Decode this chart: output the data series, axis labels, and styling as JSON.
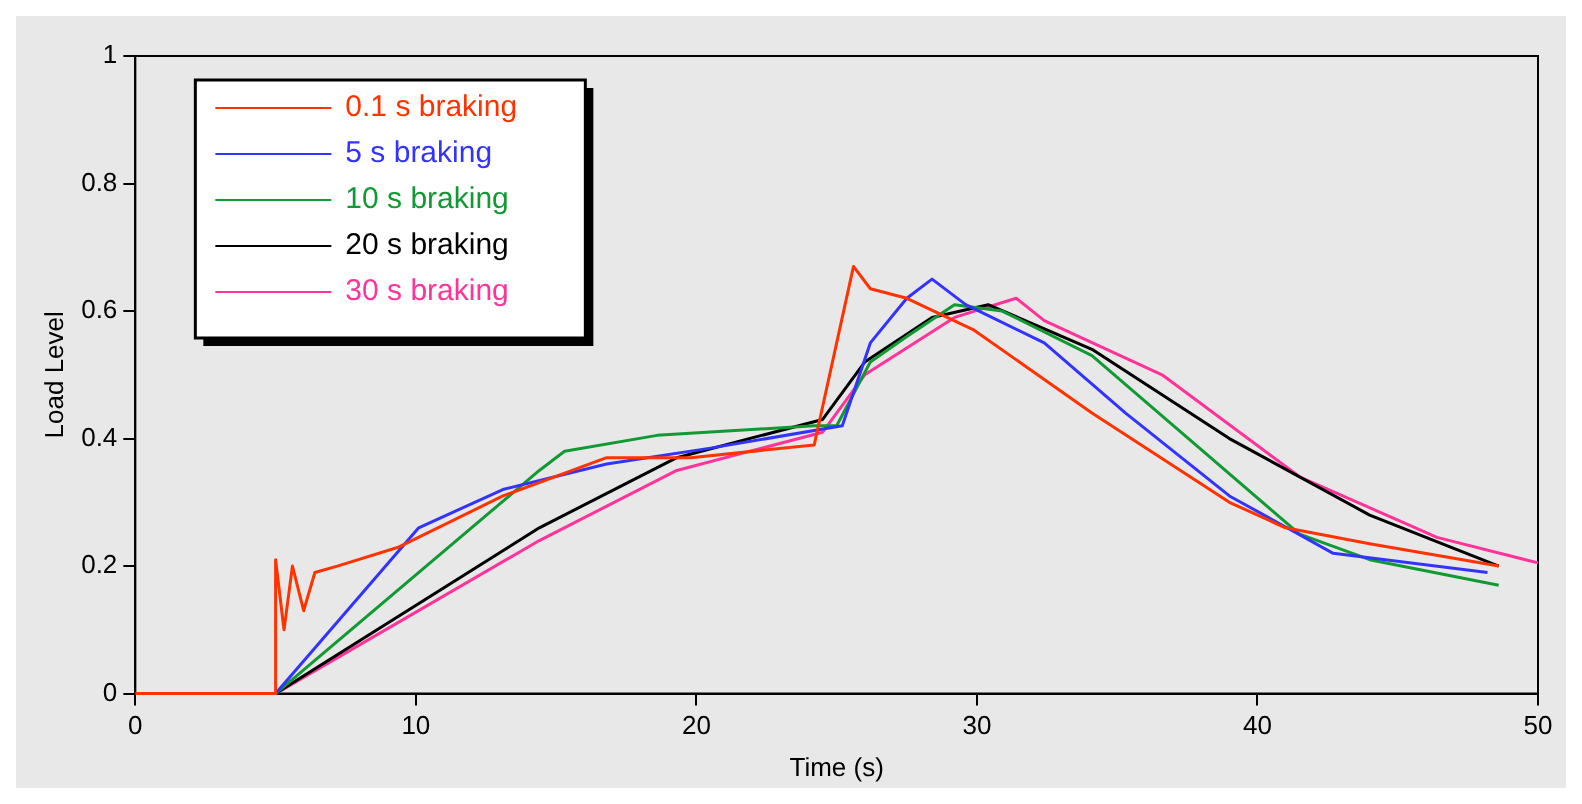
{
  "chart_data": {
    "type": "line",
    "xlabel": "Time (s)",
    "ylabel": "Load Level",
    "xlim": [
      0,
      50
    ],
    "xticks": [
      0,
      10,
      20,
      30,
      40,
      50
    ],
    "ylim": [
      0,
      1
    ],
    "yticks": [
      0,
      0.2,
      0.4,
      0.6,
      0.8,
      1
    ],
    "grid": false,
    "legend": "top left",
    "marker": "none",
    "line_style": "solid",
    "series": [
      {
        "name": "0.1 s braking",
        "color": "#ff3300",
        "x": [
          0,
          4.96,
          5.0,
          5.3,
          5.6,
          6.0,
          6.4,
          7.2,
          9.4,
          13.1,
          16.8,
          19.8,
          24.2,
          25.6,
          26.2,
          27.5,
          29.9,
          34.1,
          39,
          41,
          44,
          48.6
        ],
        "values": [
          0,
          0,
          0.21,
          0.1,
          0.2,
          0.13,
          0.19,
          0.2,
          0.23,
          0.31,
          0.37,
          0.37,
          0.39,
          0.67,
          0.635,
          0.62,
          0.57,
          0.44,
          0.3,
          0.26,
          0.235,
          0.2
        ]
      },
      {
        "name": "5 s braking",
        "color": "#3333ff",
        "x": [
          5,
          10.1,
          13.1,
          16.8,
          20.5,
          25.2,
          26.2,
          27.5,
          28.4,
          29.6,
          32.4,
          35.3,
          39,
          42.7,
          48.2
        ],
        "values": [
          0,
          0.26,
          0.32,
          0.36,
          0.385,
          0.42,
          0.55,
          0.62,
          0.65,
          0.61,
          0.55,
          0.44,
          0.31,
          0.22,
          0.19
        ]
      },
      {
        "name": "10 s braking",
        "color": "#119933",
        "x": [
          5,
          14.4,
          15.3,
          18.6,
          24.2,
          25,
          26.2,
          27.5,
          29.2,
          30.9,
          34.1,
          37.8,
          41.5,
          44,
          48.6
        ],
        "values": [
          0,
          0.35,
          0.38,
          0.405,
          0.42,
          0.42,
          0.52,
          0.56,
          0.61,
          0.6,
          0.53,
          0.39,
          0.25,
          0.21,
          0.17
        ]
      },
      {
        "name": "20 s braking",
        "color": "#000000",
        "x": [
          5,
          14.4,
          19.3,
          24.5,
          26,
          28.4,
          30.4,
          34.1,
          39,
          44,
          48.6
        ],
        "values": [
          0,
          0.26,
          0.37,
          0.43,
          0.52,
          0.59,
          0.61,
          0.54,
          0.4,
          0.28,
          0.2
        ]
      },
      {
        "name": "30 s braking",
        "color": "#ff3399",
        "x": [
          5,
          14.4,
          19.3,
          24.5,
          26,
          29.2,
          31.4,
          32.4,
          36.6,
          41.5,
          46.4,
          50
        ],
        "values": [
          0,
          0.24,
          0.35,
          0.41,
          0.5,
          0.59,
          0.62,
          0.585,
          0.5,
          0.34,
          0.245,
          0.205
        ]
      }
    ]
  }
}
